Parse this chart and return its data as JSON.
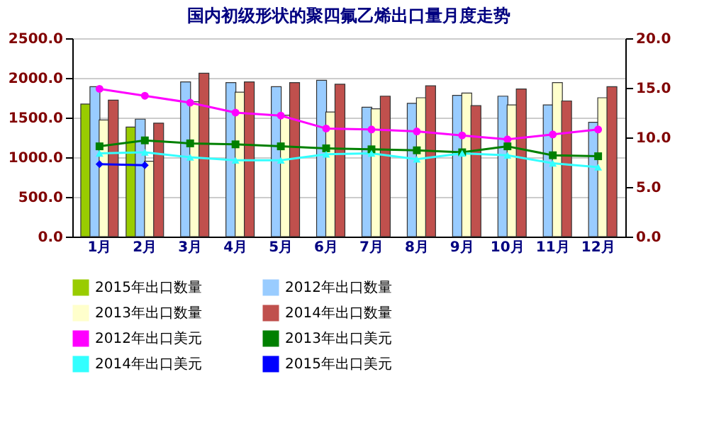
{
  "chart_data": {
    "type": "bar",
    "title": "国内初级形状的聚四氟乙烯出口量月度走势",
    "categories": [
      "1月",
      "2月",
      "3月",
      "4月",
      "5月",
      "6月",
      "7月",
      "8月",
      "9月",
      "10月",
      "11月",
      "12月"
    ],
    "series": [
      {
        "name": "2015年出口数量",
        "color": "#99cc00",
        "values": [
          1670,
          1380,
          null,
          null,
          null,
          null,
          null,
          null,
          null,
          null,
          null,
          null
        ]
      },
      {
        "name": "2012年出口数量",
        "color": "#99ccff",
        "values": [
          1890,
          1480,
          1950,
          1940,
          1890,
          1970,
          1630,
          1680,
          1780,
          1770,
          1660,
          1440
        ]
      },
      {
        "name": "2013年出口数量",
        "color": "#ffffcc",
        "values": [
          1470,
          950,
          1700,
          1820,
          1530,
          1570,
          1610,
          1750,
          1810,
          1660,
          1940,
          1750
        ]
      },
      {
        "name": "2014年出口数量",
        "color": "#c0504d",
        "values": [
          1720,
          1430,
          2060,
          1950,
          1940,
          1920,
          1770,
          1900,
          1650,
          1860,
          1710,
          1890
        ]
      },
      {
        "name": "2012年出口美元",
        "type": "line",
        "axis": "y2",
        "marker": "circle",
        "color": "#ff00ff",
        "values": [
          14.9,
          14.2,
          13.5,
          12.5,
          12.2,
          10.9,
          10.8,
          10.6,
          10.2,
          9.8,
          10.3,
          10.8
        ]
      },
      {
        "name": "2013年出口美元",
        "type": "line",
        "axis": "y2",
        "marker": "square",
        "color": "#008000",
        "values": [
          9.1,
          9.7,
          9.4,
          9.3,
          9.1,
          8.9,
          8.8,
          8.7,
          8.5,
          9.1,
          8.2,
          8.1
        ]
      },
      {
        "name": "2014年出口美元",
        "type": "line",
        "axis": "y2",
        "marker": "triangle",
        "color": "#33ffff",
        "values": [
          8.4,
          8.5,
          8.0,
          7.7,
          7.7,
          8.3,
          8.4,
          7.8,
          8.4,
          8.2,
          7.4,
          7.0
        ]
      },
      {
        "name": "2015年出口美元",
        "type": "line",
        "axis": "y2",
        "marker": "diamond",
        "color": "#0000ff",
        "values": [
          7.3,
          7.2,
          null,
          null,
          null,
          null,
          null,
          null,
          null,
          null,
          null,
          null
        ]
      }
    ],
    "ylim": [
      0,
      2500
    ],
    "yticks": [
      {
        "value": 0,
        "label": "0.0"
      },
      {
        "value": 500,
        "label": "500.0"
      },
      {
        "value": 1000,
        "label": "1000.0"
      },
      {
        "value": 1500,
        "label": "1500.0"
      },
      {
        "value": 2000,
        "label": "2000.0"
      },
      {
        "value": 2500,
        "label": "2500.0"
      }
    ],
    "y2lim": [
      0,
      20
    ],
    "y2ticks": [
      {
        "value": 0,
        "label": "0.0"
      },
      {
        "value": 5,
        "label": "5.0"
      },
      {
        "value": 10,
        "label": "10.0"
      },
      {
        "value": 15,
        "label": "15.0"
      },
      {
        "value": 20,
        "label": "20.0"
      }
    ],
    "grid": "y",
    "legend": "bottom"
  }
}
